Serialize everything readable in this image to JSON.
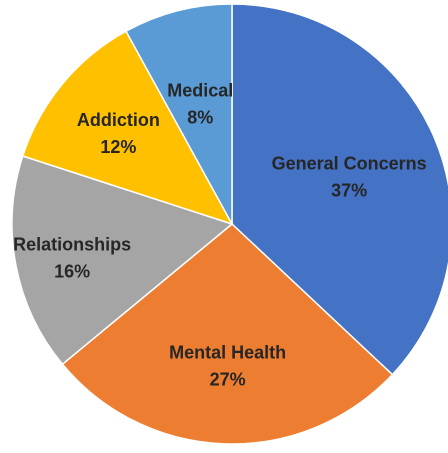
{
  "chart_data": {
    "type": "pie",
    "title": "",
    "slices": [
      {
        "name": "General Concerns",
        "value": 37,
        "label": "37%",
        "color": "#4472C4"
      },
      {
        "name": "Mental Health",
        "value": 27,
        "label": "27%",
        "color": "#ED7D31"
      },
      {
        "name": "Relationships",
        "value": 16,
        "label": "16%",
        "color": "#A5A5A5"
      },
      {
        "name": "Addiction",
        "value": 12,
        "label": "12%",
        "color": "#FFC000"
      },
      {
        "name": "Medical",
        "value": 8,
        "label": "8%",
        "color": "#5B9BD5"
      }
    ],
    "start_angle": "12 o'clock",
    "direction": "clockwise",
    "legend": "none",
    "slice_border_color": "#ffffff"
  }
}
